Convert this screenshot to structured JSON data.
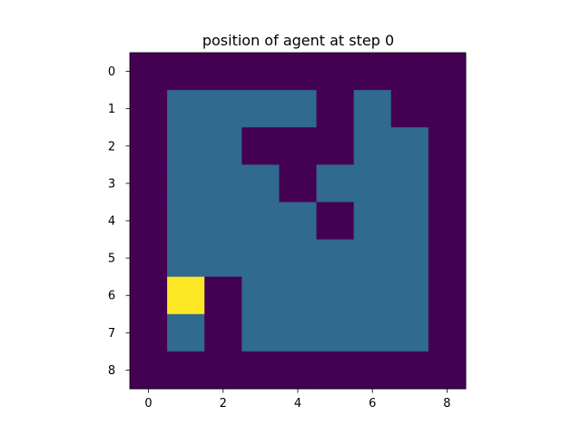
{
  "chart_data": {
    "type": "heatmap",
    "title": "position of agent at step 0",
    "xlabel": "",
    "ylabel": "",
    "x_ticks": [
      "0",
      "2",
      "4",
      "6",
      "8"
    ],
    "y_ticks": [
      "0",
      "1",
      "2",
      "3",
      "4",
      "5",
      "6",
      "7",
      "8"
    ],
    "x_tick_values": [
      0,
      2,
      4,
      6,
      8
    ],
    "y_tick_values": [
      0,
      1,
      2,
      3,
      4,
      5,
      6,
      7,
      8
    ],
    "xlim": [
      -0.5,
      8.5
    ],
    "ylim": [
      8.5,
      -0.5
    ],
    "grid": false,
    "colormap": "viridis",
    "value_colors": {
      "0": "#440154",
      "1": "#306a8e",
      "2": "#fde725"
    },
    "values": [
      [
        0,
        0,
        0,
        0,
        0,
        0,
        0,
        0,
        0
      ],
      [
        0,
        1,
        1,
        1,
        1,
        0,
        1,
        0,
        0
      ],
      [
        0,
        1,
        1,
        0,
        0,
        0,
        1,
        1,
        0
      ],
      [
        0,
        1,
        1,
        1,
        0,
        1,
        1,
        1,
        0
      ],
      [
        0,
        1,
        1,
        1,
        1,
        0,
        1,
        1,
        0
      ],
      [
        0,
        1,
        1,
        1,
        1,
        1,
        1,
        1,
        0
      ],
      [
        0,
        2,
        0,
        1,
        1,
        1,
        1,
        1,
        0
      ],
      [
        0,
        1,
        0,
        1,
        1,
        1,
        1,
        1,
        0
      ],
      [
        0,
        0,
        0,
        0,
        0,
        0,
        0,
        0,
        0
      ]
    ]
  }
}
